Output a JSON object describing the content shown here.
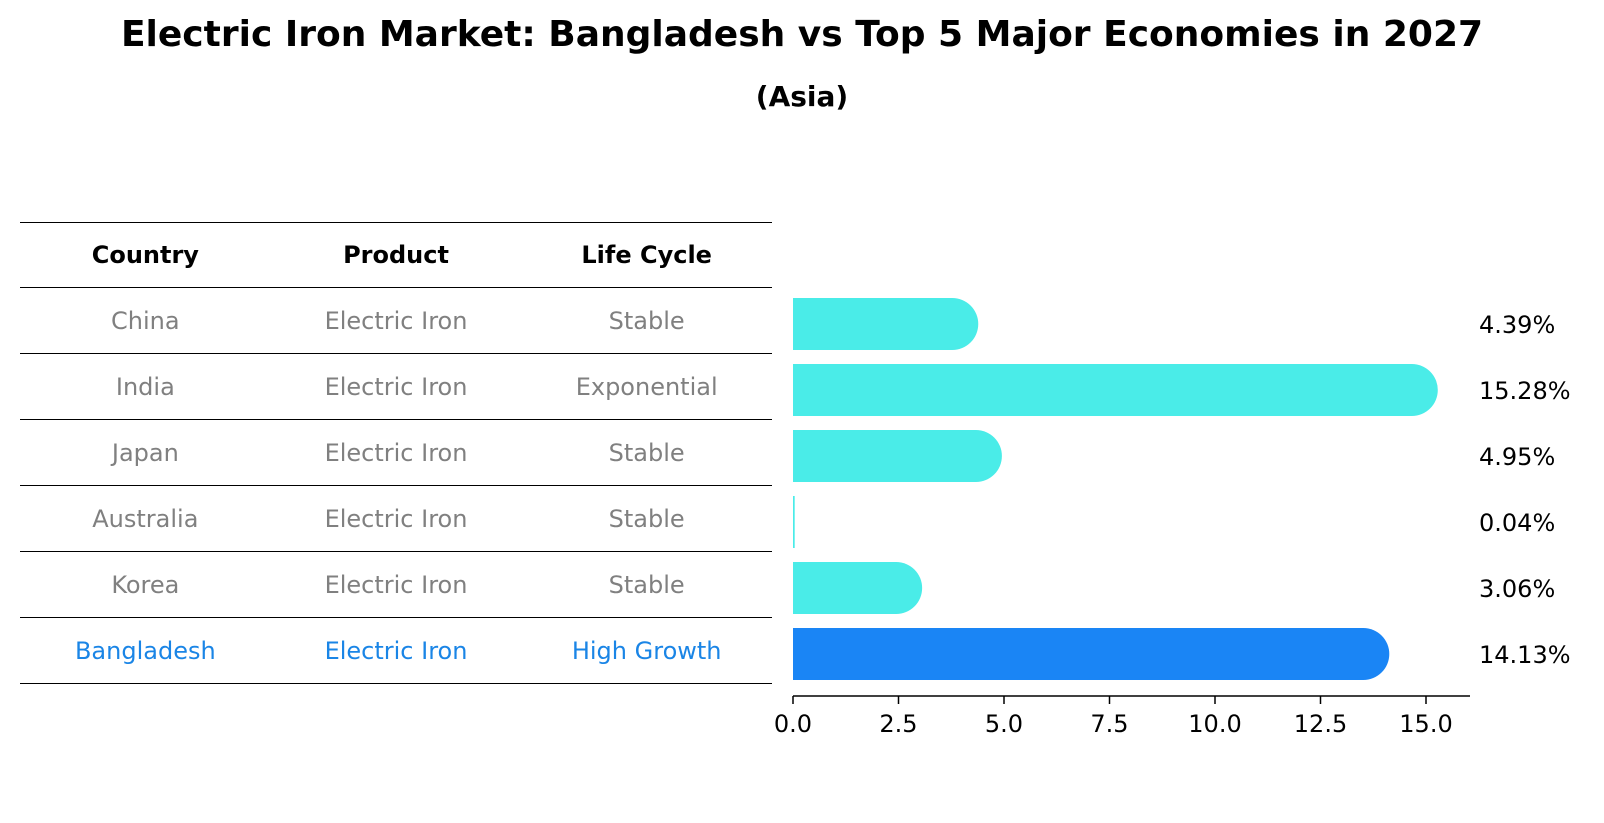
{
  "title": "Electric Iron Market: Bangladesh vs Top 5 Major Economies in 2027",
  "subtitle": "(Asia)",
  "table": {
    "headers": [
      "Country",
      "Product",
      "Life Cycle"
    ],
    "rows": [
      {
        "country": "China",
        "product": "Electric Iron",
        "life_cycle": "Stable"
      },
      {
        "country": "India",
        "product": "Electric Iron",
        "life_cycle": "Exponential"
      },
      {
        "country": "Japan",
        "product": "Electric Iron",
        "life_cycle": "Stable"
      },
      {
        "country": "Australia",
        "product": "Electric Iron",
        "life_cycle": "Stable"
      },
      {
        "country": "Korea",
        "product": "Electric Iron",
        "life_cycle": "Stable"
      },
      {
        "country": "Bangladesh",
        "product": "Electric Iron",
        "life_cycle": "High Growth"
      }
    ]
  },
  "colors": {
    "bar": "#4aece8",
    "highlight": "#1a85f5",
    "muted_text": "#808080",
    "highlight_text": "#1a85e6"
  },
  "chart_data": {
    "type": "bar",
    "orientation": "horizontal",
    "categories": [
      "China",
      "India",
      "Japan",
      "Australia",
      "Korea",
      "Bangladesh"
    ],
    "values": [
      4.39,
      15.28,
      4.95,
      0.04,
      3.06,
      14.13
    ],
    "value_labels": [
      "4.39%",
      "15.28%",
      "4.95%",
      "0.04%",
      "3.06%",
      "14.13%"
    ],
    "highlight_category": "Bangladesh",
    "xlim": [
      0,
      16
    ],
    "xticks": [
      0,
      2.5,
      5,
      7.5,
      10,
      12.5,
      15
    ],
    "xtick_labels": [
      "0.0",
      "2.5",
      "5.0",
      "7.5",
      "10.0",
      "12.5",
      "15.0"
    ],
    "xlabel": "",
    "ylabel": "",
    "grid": false
  }
}
